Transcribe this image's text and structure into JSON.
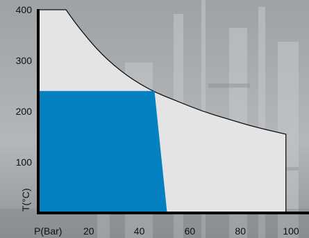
{
  "chart_data": {
    "type": "area",
    "xlabel": "P(Bar)",
    "ylabel": "T(°C)",
    "xlim": [
      0,
      100
    ],
    "ylim": [
      0,
      400
    ],
    "x_ticks": [
      "20",
      "40",
      "60",
      "80",
      "100"
    ],
    "y_ticks": [
      "100",
      "200",
      "300",
      "400"
    ],
    "grid": false,
    "series": [
      {
        "region": "outer-envelope",
        "color": "#e4e4e4",
        "outline": "#111111",
        "x": [
          0,
          11,
          16,
          25,
          35,
          45,
          55,
          65,
          75,
          85,
          98,
          98,
          0
        ],
        "y": [
          400,
          400,
          365,
          312,
          270,
          240,
          220,
          200,
          185,
          170,
          155,
          0,
          0
        ]
      },
      {
        "region": "inner-block",
        "color": "#0581c1",
        "x": [
          0,
          46,
          51,
          0
        ],
        "y": [
          240,
          240,
          0,
          0
        ]
      }
    ]
  },
  "background": {
    "color": "#a3a7ab",
    "icon": "industrial-plant-photo"
  }
}
